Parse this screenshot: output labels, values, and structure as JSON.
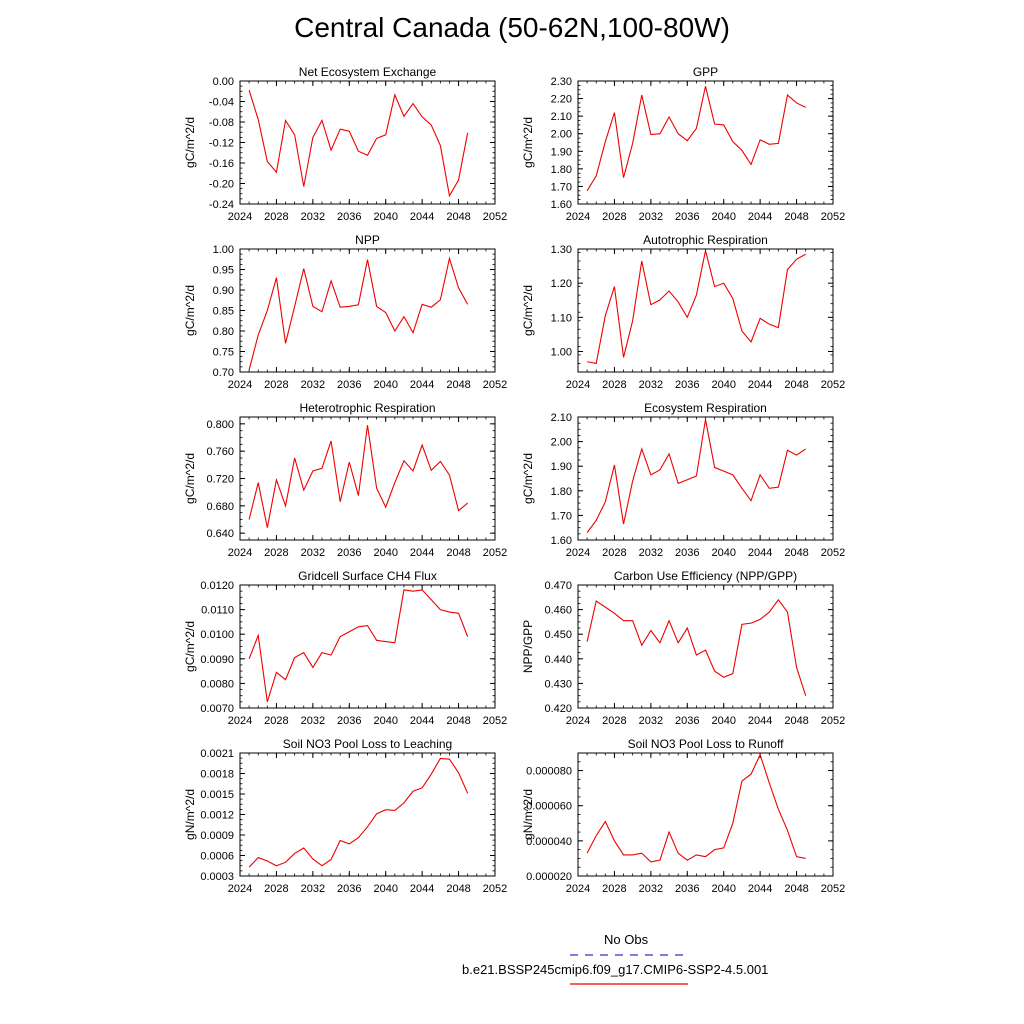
{
  "title": "Central Canada (50-62N,100-80W)",
  "legend": {
    "obs_label": "No Obs",
    "obs_color": "#3333cc",
    "model_label": "b.e21.BSSP245cmip6.f09_g17.CMIP6-SSP2-4.5.001",
    "model_color": "#ee0000"
  },
  "chart_data": [
    {
      "type": "line",
      "title": "Net Ecosystem Exchange",
      "ylabel": "gC/m^2/d",
      "xlim": [
        2024,
        2052
      ],
      "xticks": [
        "2024",
        "2028",
        "2032",
        "2036",
        "2040",
        "2044",
        "2048",
        "2052"
      ],
      "ylim": [
        -0.24,
        0.0
      ],
      "yticks": [
        "-0.24",
        "-0.20",
        "-0.16",
        "-0.12",
        "-0.08",
        "-0.04",
        "0.00"
      ],
      "x": [
        2025,
        2026,
        2027,
        2028,
        2029,
        2030,
        2031,
        2032,
        2033,
        2034,
        2035,
        2036,
        2037,
        2038,
        2039,
        2040,
        2041,
        2042,
        2043,
        2044,
        2045,
        2046,
        2047,
        2048,
        2049
      ],
      "series": [
        {
          "values": [
            -0.018,
            -0.075,
            -0.157,
            -0.178,
            -0.077,
            -0.105,
            -0.206,
            -0.11,
            -0.077,
            -0.135,
            -0.094,
            -0.098,
            -0.137,
            -0.145,
            -0.112,
            -0.105,
            -0.027,
            -0.069,
            -0.044,
            -0.07,
            -0.086,
            -0.126,
            -0.224,
            -0.193,
            -0.101
          ]
        }
      ]
    },
    {
      "type": "line",
      "title": "GPP",
      "ylabel": "gC/m^2/d",
      "xlim": [
        2024,
        2052
      ],
      "xticks": [
        "2024",
        "2028",
        "2032",
        "2036",
        "2040",
        "2044",
        "2048",
        "2052"
      ],
      "ylim": [
        1.6,
        2.3
      ],
      "yticks": [
        "1.60",
        "1.70",
        "1.80",
        "1.90",
        "2.00",
        "2.10",
        "2.20",
        "2.30"
      ],
      "x": [
        2025,
        2026,
        2027,
        2028,
        2029,
        2030,
        2031,
        2032,
        2033,
        2034,
        2035,
        2036,
        2037,
        2038,
        2039,
        2040,
        2041,
        2042,
        2043,
        2044,
        2045,
        2046,
        2047,
        2048,
        2049
      ],
      "series": [
        {
          "values": [
            1.675,
            1.76,
            1.955,
            2.12,
            1.75,
            1.945,
            2.22,
            1.995,
            2.0,
            2.095,
            2.0,
            1.96,
            2.03,
            2.27,
            2.055,
            2.05,
            1.955,
            1.905,
            1.825,
            1.965,
            1.94,
            1.945,
            2.22,
            2.175,
            2.15
          ]
        }
      ]
    },
    {
      "type": "line",
      "title": "NPP",
      "ylabel": "gC/m^2/d",
      "xlim": [
        2024,
        2052
      ],
      "xticks": [
        "2024",
        "2028",
        "2032",
        "2036",
        "2040",
        "2044",
        "2048",
        "2052"
      ],
      "ylim": [
        0.7,
        1.0
      ],
      "yticks": [
        "0.70",
        "0.75",
        "0.80",
        "0.85",
        "0.90",
        "0.95",
        "1.00"
      ],
      "x": [
        2025,
        2026,
        2027,
        2028,
        2029,
        2030,
        2031,
        2032,
        2033,
        2034,
        2035,
        2036,
        2037,
        2038,
        2039,
        2040,
        2041,
        2042,
        2043,
        2044,
        2045,
        2046,
        2047,
        2048,
        2049
      ],
      "series": [
        {
          "values": [
            0.705,
            0.79,
            0.85,
            0.93,
            0.77,
            0.86,
            0.952,
            0.86,
            0.847,
            0.922,
            0.858,
            0.86,
            0.864,
            0.974,
            0.86,
            0.845,
            0.8,
            0.835,
            0.796,
            0.865,
            0.858,
            0.876,
            0.977,
            0.905,
            0.865
          ]
        }
      ]
    },
    {
      "type": "line",
      "title": "Autotrophic Respiration",
      "ylabel": "gC/m^2/d",
      "xlim": [
        2024,
        2052
      ],
      "xticks": [
        "2024",
        "2028",
        "2032",
        "2036",
        "2040",
        "2044",
        "2048",
        "2052"
      ],
      "ylim": [
        0.94,
        1.3
      ],
      "yticks": [
        "1.00",
        "1.10",
        "1.20",
        "1.30"
      ],
      "x": [
        2025,
        2026,
        2027,
        2028,
        2029,
        2030,
        2031,
        2032,
        2033,
        2034,
        2035,
        2036,
        2037,
        2038,
        2039,
        2040,
        2041,
        2042,
        2043,
        2044,
        2045,
        2046,
        2047,
        2048,
        2049
      ],
      "series": [
        {
          "values": [
            0.97,
            0.965,
            1.105,
            1.19,
            0.983,
            1.09,
            1.265,
            1.137,
            1.151,
            1.177,
            1.145,
            1.1,
            1.165,
            1.295,
            1.19,
            1.2,
            1.155,
            1.06,
            1.028,
            1.097,
            1.08,
            1.07,
            1.24,
            1.27,
            1.285
          ]
        }
      ]
    },
    {
      "type": "line",
      "title": "Heterotrophic Respiration",
      "ylabel": "gC/m^2/d",
      "xlim": [
        2024,
        2052
      ],
      "xticks": [
        "2024",
        "2028",
        "2032",
        "2036",
        "2040",
        "2044",
        "2048",
        "2052"
      ],
      "ylim": [
        0.63,
        0.81
      ],
      "yticks": [
        "0.640",
        "0.680",
        "0.720",
        "0.760",
        "0.800"
      ],
      "x": [
        2025,
        2026,
        2027,
        2028,
        2029,
        2030,
        2031,
        2032,
        2033,
        2034,
        2035,
        2036,
        2037,
        2038,
        2039,
        2040,
        2041,
        2042,
        2043,
        2044,
        2045,
        2046,
        2047,
        2048,
        2049
      ],
      "series": [
        {
          "values": [
            0.66,
            0.714,
            0.648,
            0.718,
            0.68,
            0.75,
            0.703,
            0.731,
            0.735,
            0.775,
            0.686,
            0.744,
            0.695,
            0.798,
            0.706,
            0.678,
            0.714,
            0.746,
            0.731,
            0.769,
            0.732,
            0.745,
            0.725,
            0.673,
            0.684
          ]
        }
      ]
    },
    {
      "type": "line",
      "title": "Ecosystem Respiration",
      "ylabel": "gC/m^2/d",
      "xlim": [
        2024,
        2052
      ],
      "xticks": [
        "2024",
        "2028",
        "2032",
        "2036",
        "2040",
        "2044",
        "2048",
        "2052"
      ],
      "ylim": [
        1.6,
        2.1
      ],
      "yticks": [
        "1.60",
        "1.70",
        "1.80",
        "1.90",
        "2.00",
        "2.10"
      ],
      "x": [
        2025,
        2026,
        2027,
        2028,
        2029,
        2030,
        2031,
        2032,
        2033,
        2034,
        2035,
        2036,
        2037,
        2038,
        2039,
        2040,
        2041,
        2042,
        2043,
        2044,
        2045,
        2046,
        2047,
        2048,
        2049
      ],
      "series": [
        {
          "values": [
            1.63,
            1.68,
            1.755,
            1.905,
            1.665,
            1.84,
            1.97,
            1.865,
            1.885,
            1.95,
            1.83,
            1.845,
            1.86,
            2.09,
            1.895,
            1.88,
            1.865,
            1.81,
            1.76,
            1.865,
            1.81,
            1.815,
            1.965,
            1.945,
            1.97
          ]
        }
      ]
    },
    {
      "type": "line",
      "title": "Gridcell Surface CH4 Flux",
      "ylabel": "gC/m^2/d",
      "xlim": [
        2024,
        2052
      ],
      "xticks": [
        "2024",
        "2028",
        "2032",
        "2036",
        "2040",
        "2044",
        "2048",
        "2052"
      ],
      "ylim": [
        0.007,
        0.012
      ],
      "yticks": [
        "0.0070",
        "0.0080",
        "0.0090",
        "0.0100",
        "0.0110",
        "0.0120"
      ],
      "x": [
        2025,
        2026,
        2027,
        2028,
        2029,
        2030,
        2031,
        2032,
        2033,
        2034,
        2035,
        2036,
        2037,
        2038,
        2039,
        2040,
        2041,
        2042,
        2043,
        2044,
        2045,
        2046,
        2047,
        2048,
        2049
      ],
      "series": [
        {
          "values": [
            0.009,
            0.00995,
            0.00725,
            0.00845,
            0.00815,
            0.00905,
            0.00925,
            0.00865,
            0.00925,
            0.00915,
            0.0099,
            0.0101,
            0.0103,
            0.01035,
            0.00975,
            0.0097,
            0.00965,
            0.0118,
            0.01175,
            0.0118,
            0.0114,
            0.011,
            0.0109,
            0.01085,
            0.0099
          ]
        }
      ]
    },
    {
      "type": "line",
      "title": "Carbon Use Efficiency (NPP/GPP)",
      "ylabel": "NPP/GPP",
      "xlim": [
        2024,
        2052
      ],
      "xticks": [
        "2024",
        "2028",
        "2032",
        "2036",
        "2040",
        "2044",
        "2048",
        "2052"
      ],
      "ylim": [
        0.42,
        0.47
      ],
      "yticks": [
        "0.420",
        "0.430",
        "0.440",
        "0.450",
        "0.460",
        "0.470"
      ],
      "x": [
        2025,
        2026,
        2027,
        2028,
        2029,
        2030,
        2031,
        2032,
        2033,
        2034,
        2035,
        2036,
        2037,
        2038,
        2039,
        2040,
        2041,
        2042,
        2043,
        2044,
        2045,
        2046,
        2047,
        2048,
        2049
      ],
      "series": [
        {
          "values": [
            0.447,
            0.4635,
            0.461,
            0.4585,
            0.4555,
            0.4555,
            0.4455,
            0.4515,
            0.4465,
            0.4555,
            0.4465,
            0.4525,
            0.4415,
            0.4435,
            0.435,
            0.4325,
            0.434,
            0.454,
            0.4545,
            0.456,
            0.459,
            0.464,
            0.459,
            0.4365,
            0.425
          ]
        }
      ]
    },
    {
      "type": "line",
      "title": "Soil NO3 Pool Loss to Leaching",
      "ylabel": "gN/m^2/d",
      "xlim": [
        2024,
        2052
      ],
      "xticks": [
        "2024",
        "2028",
        "2032",
        "2036",
        "2040",
        "2044",
        "2048",
        "2052"
      ],
      "ylim": [
        0.0003,
        0.0021
      ],
      "yticks": [
        "0.0003",
        "0.0006",
        "0.0009",
        "0.0012",
        "0.0015",
        "0.0018",
        "0.0021"
      ],
      "x": [
        2025,
        2026,
        2027,
        2028,
        2029,
        2030,
        2031,
        2032,
        2033,
        2034,
        2035,
        2036,
        2037,
        2038,
        2039,
        2040,
        2041,
        2042,
        2043,
        2044,
        2045,
        2046,
        2047,
        2048,
        2049
      ],
      "series": [
        {
          "values": [
            0.00043,
            0.00057,
            0.00052,
            0.00045,
            0.0005,
            0.00063,
            0.00071,
            0.00055,
            0.00045,
            0.00054,
            0.00082,
            0.00077,
            0.00086,
            0.00102,
            0.00121,
            0.00127,
            0.00126,
            0.00137,
            0.00154,
            0.00159,
            0.00179,
            0.00202,
            0.00201,
            0.00181,
            0.00151
          ]
        }
      ]
    },
    {
      "type": "line",
      "title": "Soil NO3 Pool Loss to Runoff",
      "ylabel": "gN/m^2/d",
      "xlim": [
        2024,
        2052
      ],
      "xticks": [
        "2024",
        "2028",
        "2032",
        "2036",
        "2040",
        "2044",
        "2048",
        "2052"
      ],
      "ylim": [
        2e-05,
        9e-05
      ],
      "yticks": [
        "0.000020",
        "0.000040",
        "0.000060",
        "0.000080"
      ],
      "x": [
        2025,
        2026,
        2027,
        2028,
        2029,
        2030,
        2031,
        2032,
        2033,
        2034,
        2035,
        2036,
        2037,
        2038,
        2039,
        2040,
        2041,
        2042,
        2043,
        2044,
        2045,
        2046,
        2047,
        2048,
        2049
      ],
      "series": [
        {
          "values": [
            3.3e-05,
            4.3e-05,
            5.1e-05,
            4e-05,
            3.2e-05,
            3.2e-05,
            3.3e-05,
            2.8e-05,
            2.9e-05,
            4.5e-05,
            3.3e-05,
            2.9e-05,
            3.2e-05,
            3.1e-05,
            3.5e-05,
            3.6e-05,
            5e-05,
            7.4e-05,
            7.8e-05,
            8.9e-05,
            7.3e-05,
            5.8e-05,
            4.6e-05,
            3.1e-05,
            3e-05
          ]
        }
      ]
    }
  ]
}
